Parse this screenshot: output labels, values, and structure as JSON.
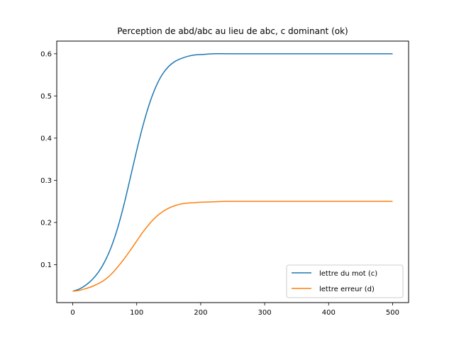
{
  "chart_data": {
    "type": "line",
    "title": "Perception de abd/abc au lieu de abc, c dominant (ok)",
    "xlabel": "",
    "ylabel": "",
    "xlim": [
      -25,
      525
    ],
    "ylim": [
      0.01,
      0.63
    ],
    "xticks": [
      0,
      100,
      200,
      300,
      400,
      500
    ],
    "yticks": [
      0.1,
      0.2,
      0.3,
      0.4,
      0.5,
      0.6
    ],
    "xtick_labels": [
      "0",
      "100",
      "200",
      "300",
      "400",
      "500"
    ],
    "ytick_labels": [
      "0.1",
      "0.2",
      "0.3",
      "0.4",
      "0.5",
      "0.6"
    ],
    "grid": false,
    "legend_position": "lower-right",
    "x": [
      0,
      10,
      20,
      30,
      40,
      50,
      60,
      70,
      80,
      90,
      100,
      110,
      120,
      130,
      140,
      150,
      160,
      170,
      180,
      190,
      200,
      220,
      240,
      260,
      280,
      300,
      350,
      400,
      450,
      500
    ],
    "series": [
      {
        "name": "lettre du mot (c)",
        "color": "#1f77b4",
        "values": [
          0.037,
          0.042,
          0.051,
          0.064,
          0.082,
          0.107,
          0.141,
          0.186,
          0.242,
          0.306,
          0.371,
          0.431,
          0.482,
          0.522,
          0.551,
          0.57,
          0.582,
          0.589,
          0.594,
          0.597,
          0.598,
          0.6,
          0.6,
          0.6,
          0.6,
          0.6,
          0.6,
          0.6,
          0.6,
          0.6
        ]
      },
      {
        "name": "lettre erreur (d)",
        "color": "#ff7f0e",
        "values": [
          0.037,
          0.039,
          0.043,
          0.048,
          0.055,
          0.064,
          0.077,
          0.094,
          0.113,
          0.134,
          0.156,
          0.178,
          0.197,
          0.213,
          0.225,
          0.234,
          0.24,
          0.244,
          0.246,
          0.247,
          0.248,
          0.249,
          0.25,
          0.25,
          0.25,
          0.25,
          0.25,
          0.25,
          0.25,
          0.25
        ]
      }
    ]
  },
  "colors": {
    "series_1": "#1f77b4",
    "series_2": "#ff7f0e"
  }
}
